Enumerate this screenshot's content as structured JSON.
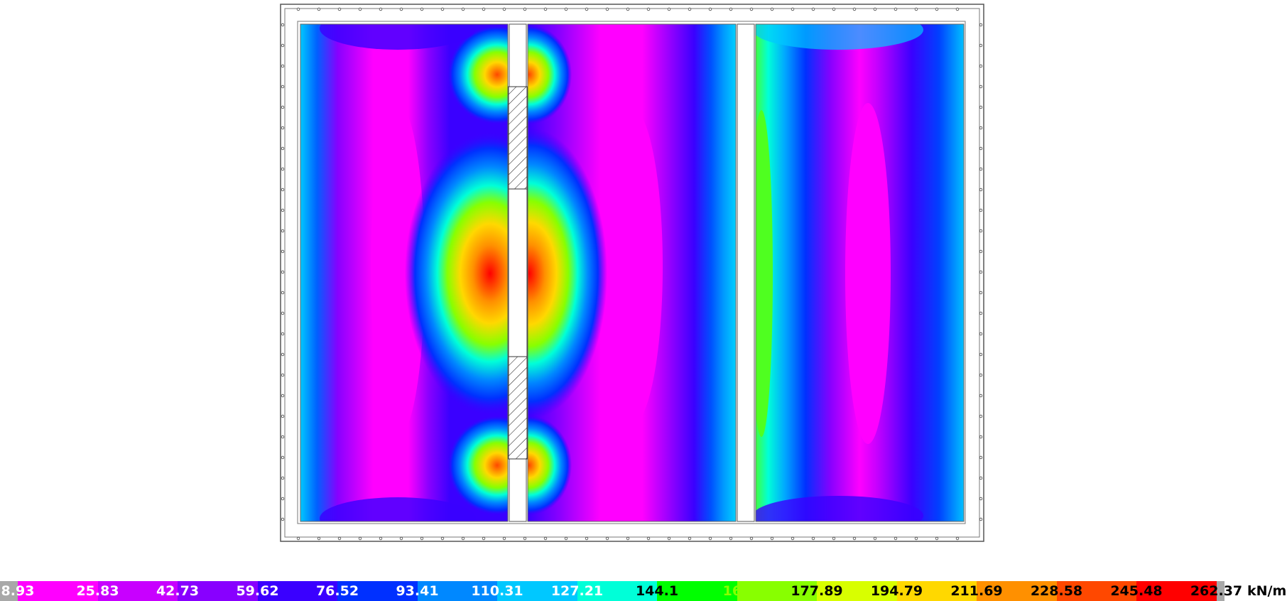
{
  "legend": {
    "unit": "kN/m",
    "values": [
      "8.93",
      "25.83",
      "42.73",
      "59.62",
      "76.52",
      "93.41",
      "110.31",
      "127.21",
      "144.1",
      "161",
      "177.89",
      "194.79",
      "211.69",
      "228.58",
      "245.48",
      "262.37"
    ],
    "colors": [
      "#a8a8a8",
      "#ff00ff",
      "#c800ff",
      "#8800ff",
      "#3a00ff",
      "#0030ff",
      "#0088ff",
      "#00c8ff",
      "#00ffd8",
      "#00ff00",
      "#88ff00",
      "#d8ff00",
      "#ffd800",
      "#ff9000",
      "#ff4800",
      "#ff0000",
      "#a8a8a8"
    ],
    "label_colors": [
      "#ffffff",
      "#ffffff",
      "#ffffff",
      "#ffffff",
      "#ffffff",
      "#ffffff",
      "#ffffff",
      "#ffffff",
      "#000000",
      "#88ff00",
      "#000000",
      "#000000",
      "#000000",
      "#000000",
      "#000000",
      "#000000"
    ]
  }
}
